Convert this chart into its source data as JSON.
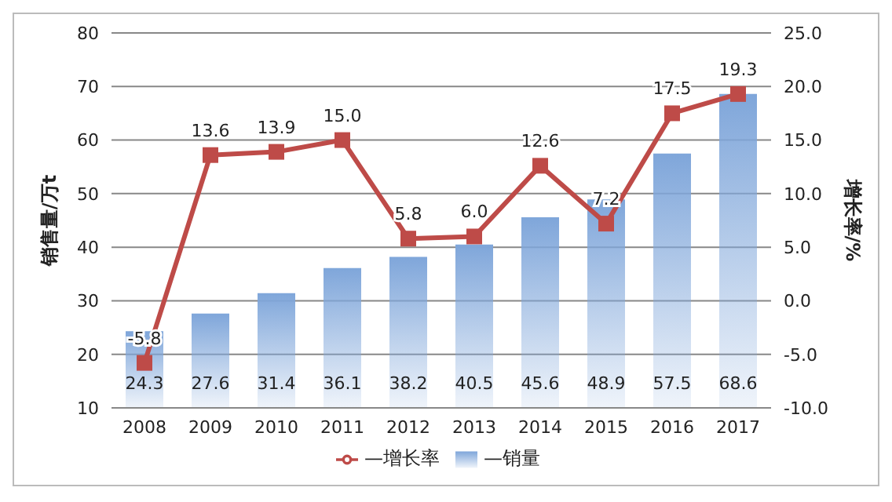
{
  "chart_data": {
    "type": "bar",
    "categories": [
      "2008",
      "2009",
      "2010",
      "2011",
      "2012",
      "2013",
      "2014",
      "2015",
      "2016",
      "2017"
    ],
    "ylabel": "销售量/万t",
    "y2label": "增长率/%",
    "series": [
      {
        "name": "—销量",
        "color": "#7fa6da",
        "values": [
          24.3,
          27.6,
          31.4,
          36.1,
          38.2,
          40.5,
          45.6,
          48.9,
          57.5,
          68.6
        ],
        "value_labels": [
          "24.3",
          "27.6",
          "31.4",
          "36.1",
          "38.2",
          "40.5",
          "45.6",
          "48.9",
          "57.5",
          "68.6"
        ]
      },
      {
        "name": "—增长率",
        "type": "line",
        "axis": "y2",
        "color": "#be4b48",
        "marker": "square",
        "values": [
          -5.8,
          13.6,
          13.9,
          15.0,
          5.8,
          6.0,
          12.6,
          7.2,
          17.5,
          19.3
        ],
        "value_labels": [
          "-5.8",
          "13.6",
          "13.9",
          "15.0",
          "5.8",
          "6.0",
          "12.6",
          "7.2",
          "17.5",
          "19.3"
        ]
      }
    ],
    "ylim": [
      10,
      80
    ],
    "yticks": [
      10,
      20,
      30,
      40,
      50,
      60,
      70,
      80
    ],
    "y2lim": [
      -10,
      25
    ],
    "y2ticks": [
      {
        "value": -10,
        "label": "-10.0"
      },
      {
        "value": -5,
        "label": "-5.0"
      },
      {
        "value": 0,
        "label": "0.0"
      },
      {
        "value": 5,
        "label": "5.0"
      },
      {
        "value": 10,
        "label": "10.0"
      },
      {
        "value": 15,
        "label": "15.0"
      },
      {
        "value": 20,
        "label": "20.0"
      },
      {
        "value": 25,
        "label": "25.0"
      }
    ],
    "grid": "y",
    "legend": "bottom"
  }
}
